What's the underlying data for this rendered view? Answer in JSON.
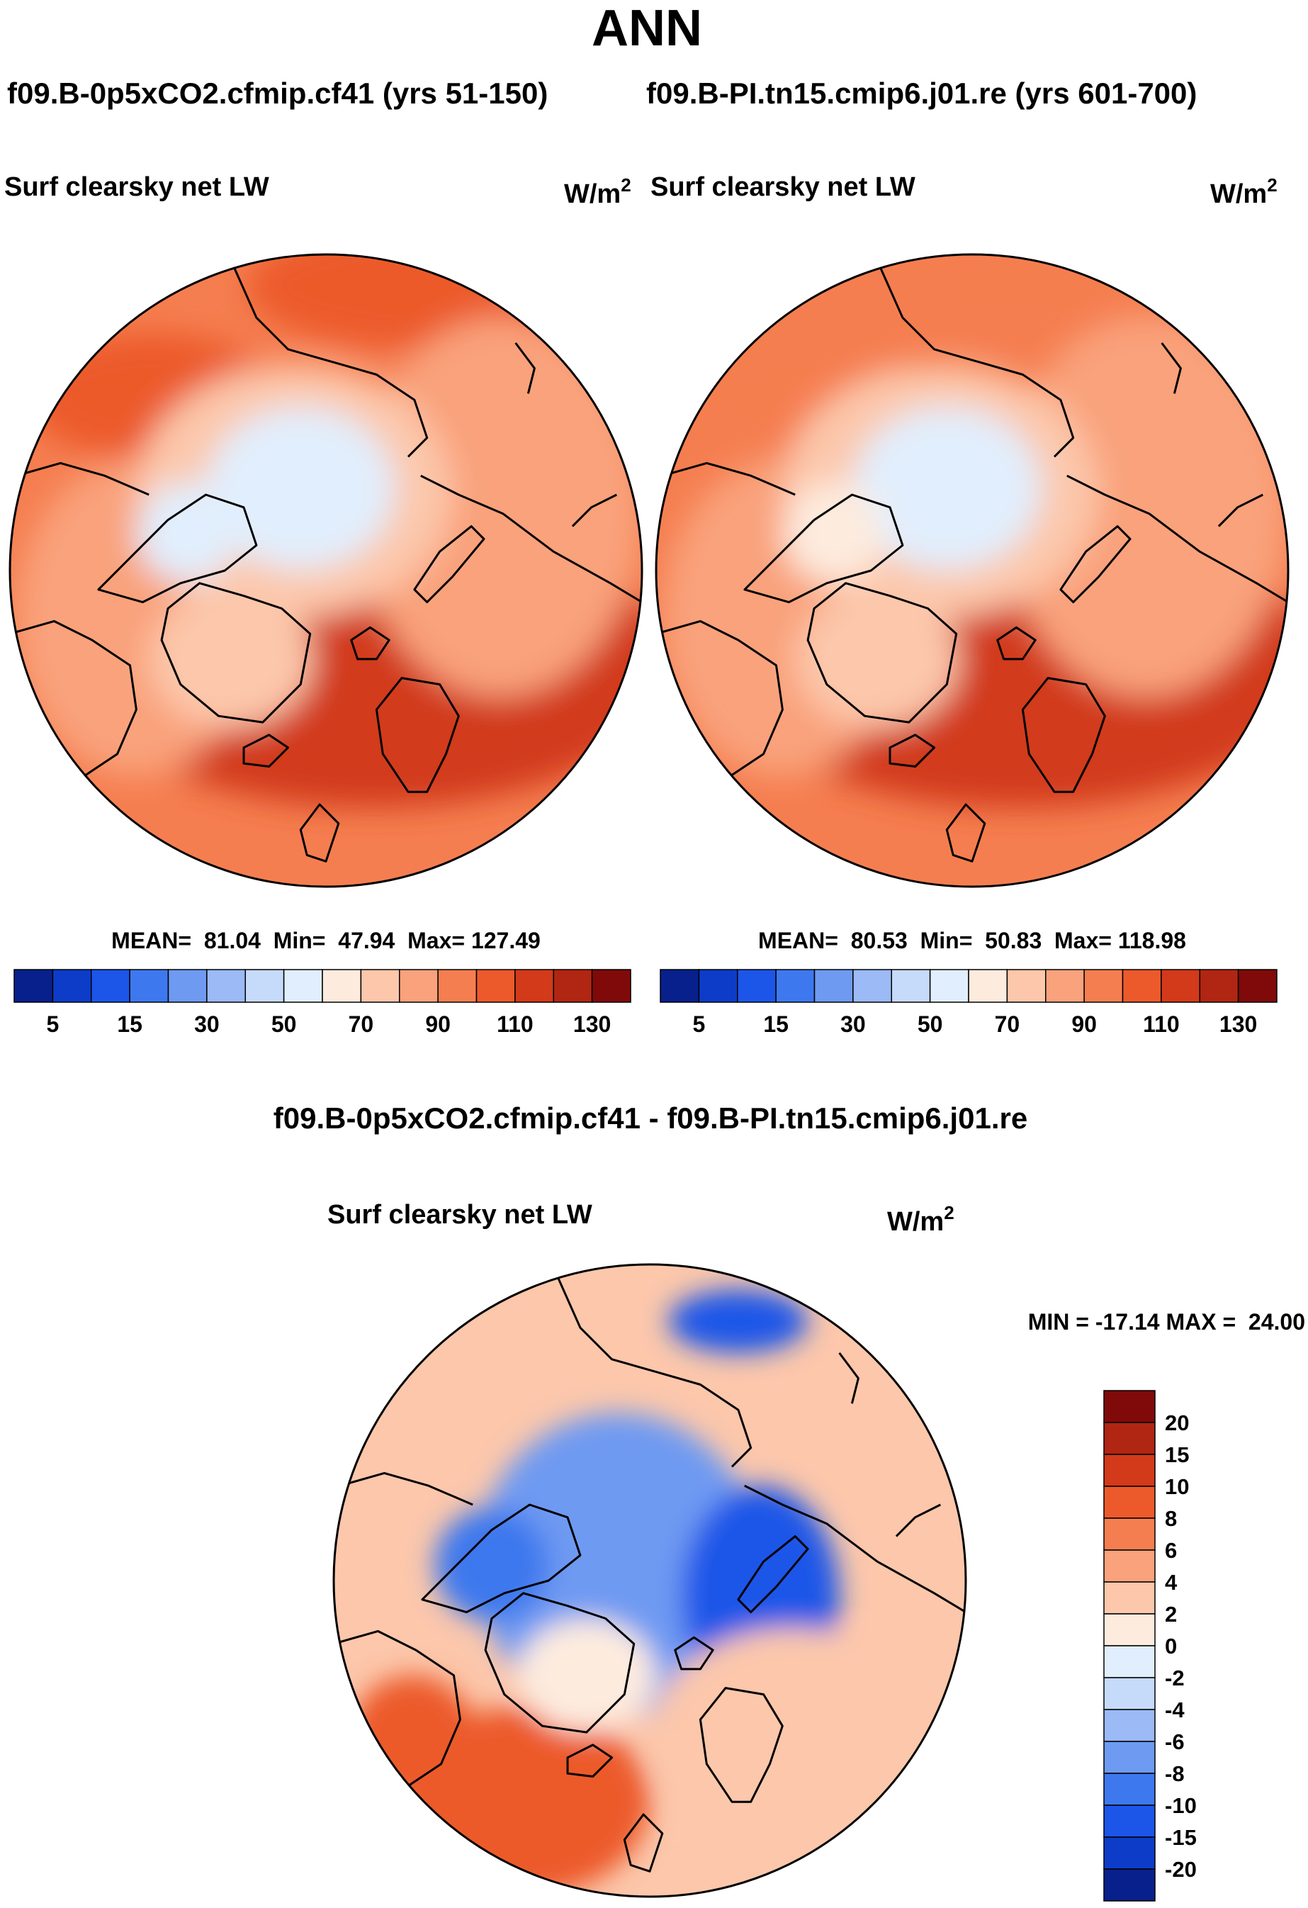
{
  "page": {
    "season": "ANN",
    "case1_header": "f09.B-0p5xCO2.cfmip.cf41 (yrs 51-150)",
    "case2_header": "f09.B-PI.tn15.cmip6.j01.re (yrs 601-700)",
    "diff_header": "f09.B-0p5xCO2.cfmip.cf41 - f09.B-PI.tn15.cmip6.j01.re"
  },
  "chart_data": [
    {
      "type": "heatmap",
      "projection": "north-polar-stereographic",
      "title": "Surf clearsky net LW",
      "units_base": "W/m",
      "units_exp": "2",
      "stats": {
        "mean_label": "MEAN=",
        "mean": "81.04",
        "min_label": "Min=",
        "min": "47.94",
        "max_label": "Max=",
        "max": "127.49"
      },
      "colorbar": {
        "orientation": "horizontal",
        "colors": [
          "#08208c",
          "#0c3cc8",
          "#1c56e8",
          "#3e78ee",
          "#6e9af2",
          "#9bbaf6",
          "#c6dafa",
          "#e1eefd",
          "#fdebde",
          "#fcc7ab",
          "#f9a27c",
          "#f57e50",
          "#ec5a2c",
          "#d23a1a",
          "#b02612",
          "#800a0a"
        ],
        "tick_labels": [
          "5",
          "15",
          "30",
          "50",
          "70",
          "90",
          "110",
          "130"
        ]
      },
      "field": {
        "pole_value": 52,
        "ocean_value": 95,
        "n_atlantic_value": 115,
        "n_pacific_value": 100,
        "greenland_value": 72,
        "arctic_islands_value": 56,
        "continent_value": 80
      }
    },
    {
      "type": "heatmap",
      "projection": "north-polar-stereographic",
      "title": "Surf clearsky net LW",
      "units_base": "W/m",
      "units_exp": "2",
      "stats": {
        "mean_label": "MEAN=",
        "mean": "80.53",
        "min_label": "Min=",
        "min": "50.83",
        "max_label": "Max=",
        "max": "118.98"
      },
      "colorbar": {
        "orientation": "horizontal",
        "colors": [
          "#08208c",
          "#0c3cc8",
          "#1c56e8",
          "#3e78ee",
          "#6e9af2",
          "#9bbaf6",
          "#c6dafa",
          "#e1eefd",
          "#fdebde",
          "#fcc7ab",
          "#f9a27c",
          "#f57e50",
          "#ec5a2c",
          "#d23a1a",
          "#b02612",
          "#800a0a"
        ],
        "tick_labels": [
          "5",
          "15",
          "30",
          "50",
          "70",
          "90",
          "110",
          "130"
        ]
      },
      "field": {
        "pole_value": 55,
        "ocean_value": 95,
        "n_atlantic_value": 112,
        "n_pacific_value": 98,
        "greenland_value": 70,
        "arctic_islands_value": 62,
        "continent_value": 80
      }
    },
    {
      "type": "heatmap",
      "projection": "north-polar-stereographic",
      "title": "Surf clearsky net LW",
      "units_base": "W/m",
      "units_exp": "2",
      "stats": {
        "minmax_text": "MIN = -17.14 MAX =  24.00",
        "min": -17.14,
        "max": 24.0
      },
      "colorbar": {
        "orientation": "vertical",
        "colors": [
          "#800a0a",
          "#b02612",
          "#d23a1a",
          "#ec5a2c",
          "#f57e50",
          "#f9a27c",
          "#fcc7ab",
          "#fdebde",
          "#e1eefd",
          "#c6dafa",
          "#9bbaf6",
          "#6e9af2",
          "#3e78ee",
          "#1c56e8",
          "#0c3cc8",
          "#08208c"
        ],
        "tick_labels": [
          "20",
          "15",
          "10",
          "8",
          "6",
          "4",
          "2",
          "0",
          "-2",
          "-4",
          "-6",
          "-8",
          "-10",
          "-15",
          "-20"
        ]
      },
      "field": {
        "pole_value": -5,
        "central_arctic_value": -7,
        "ocean_value": 3,
        "n_atlantic_value": 9,
        "greenland_value": 1,
        "arctic_islands_value": -9,
        "siberia_value": -13,
        "barents_value": -11
      }
    }
  ]
}
